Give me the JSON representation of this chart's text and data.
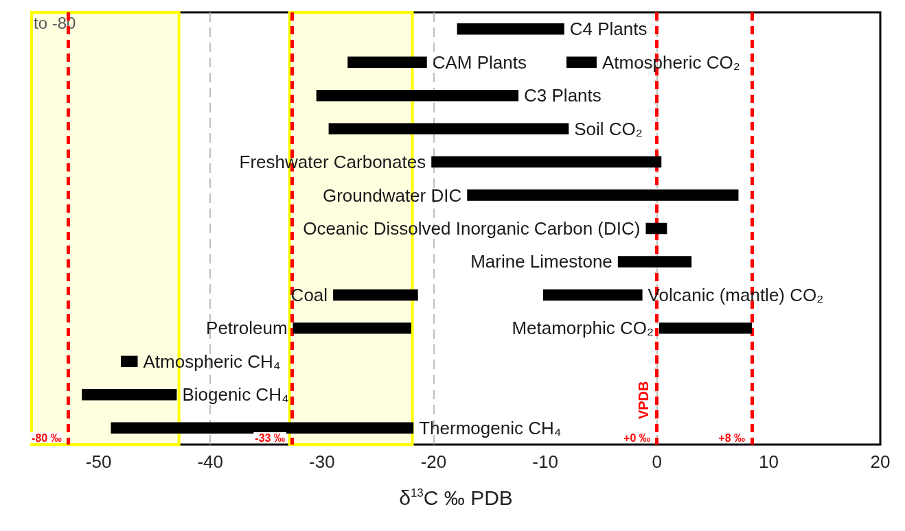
{
  "chart_data": {
    "type": "bar",
    "orientation": "horizontal",
    "xlabel": "δ$^{13}$C ‰ PDB",
    "categories": [
      null,
      null,
      null,
      null,
      null,
      null,
      null,
      null,
      null,
      null,
      null,
      null,
      null
    ],
    "series": [
      {
        "color": "#000000",
        "base": [
          -17.9,
          -27.7,
          -30.5,
          -29.4,
          null,
          null,
          null,
          null,
          -10.2,
          null,
          -48.0,
          -51.5,
          -48.9
        ],
        "values": [
          9.6,
          7.1,
          18.1,
          21.5,
          null,
          null,
          null,
          null,
          8.9,
          null,
          1.5,
          8.5,
          27.1
        ],
        "value_labels": [
          "C4 Plants",
          "CAM Plants",
          "C3 Plants",
          "Soil CO₂",
          null,
          null,
          null,
          null,
          "Volcanic (mantle) CO₂",
          null,
          "Atmospheric CH₄",
          "Biogenic CH₄",
          "Thermogenic CH₄"
        ]
      },
      {
        "color": "#000000",
        "base": [
          null,
          null,
          null,
          null,
          -20.2,
          -17.0,
          -1.0,
          -3.5,
          -29.0,
          -32.6,
          null,
          null,
          null
        ],
        "values": [
          null,
          null,
          null,
          null,
          20.6,
          24.3,
          1.9,
          6.6,
          7.6,
          10.6,
          null,
          null,
          null
        ],
        "value_labels": [
          null,
          null,
          null,
          null,
          "Freshwater Carbonates",
          "Groundwater DIC",
          "Oceanic Dissolved Inorganic Carbon (DIC)",
          "Marine Limestone",
          "Coal",
          "Petroleum",
          null,
          null,
          null
        ]
      },
      {
        "color": "#000000",
        "base": [
          null,
          -8.1,
          null,
          null,
          null,
          null,
          null,
          null,
          null,
          null,
          null,
          null,
          null
        ],
        "values": [
          null,
          2.7,
          null,
          null,
          null,
          null,
          null,
          null,
          null,
          null,
          null,
          null,
          null
        ],
        "value_labels": [
          null,
          "Atmospheric CO₂",
          null,
          null,
          null,
          null,
          null,
          null,
          null,
          null,
          null,
          null,
          null
        ]
      },
      {
        "color": "#000000",
        "base": [
          null,
          null,
          null,
          null,
          null,
          null,
          null,
          null,
          null,
          0.2,
          null,
          null,
          null
        ],
        "values": [
          null,
          null,
          null,
          null,
          null,
          null,
          null,
          null,
          null,
          8.3,
          null,
          null,
          null
        ],
        "value_labels": [
          null,
          null,
          null,
          null,
          null,
          null,
          null,
          null,
          null,
          "Metamorphic CO₂",
          null,
          null,
          null
        ]
      }
    ],
    "xlim": [
      -56,
      20
    ],
    "xticks": [
      -50,
      -40,
      -30,
      -20,
      -10,
      0,
      10,
      20
    ],
    "grid": "x",
    "ref_lines": [
      {
        "axis": "x",
        "value": -52.7,
        "label": "-80 ‰",
        "color": "#ff0000",
        "line_style": "dashed"
      },
      {
        "axis": "x",
        "value": -32.7,
        "label": "-33 ‰",
        "color": "#ff0000",
        "line_style": "dashed"
      },
      {
        "axis": "x",
        "value": 0,
        "label": "+0 ‰",
        "color": "#ff0000",
        "line_style": "dashed"
      },
      {
        "axis": "x",
        "value": 8.5,
        "label": "+8 ‰",
        "color": "#ff0000",
        "line_style": "dashed"
      }
    ],
    "bands": [
      {
        "axis": "x",
        "from": -32.9,
        "to": -21.9,
        "color": "#ffff00"
      },
      {
        "axis": "x",
        "from": -56,
        "to": -42.8,
        "label": "to -80",
        "color": "#ffff00"
      }
    ],
    "annotations": [
      {
        "text": "VPDB",
        "x": 0
      }
    ]
  }
}
